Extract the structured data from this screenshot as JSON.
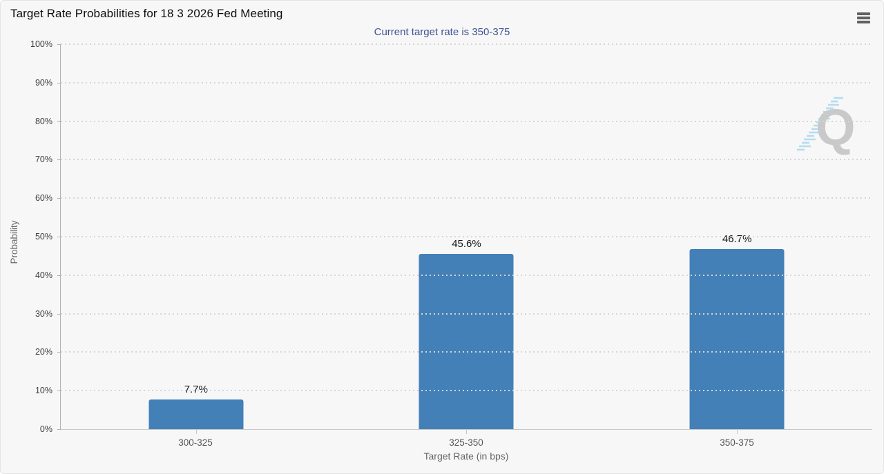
{
  "header": {
    "title": "Target Rate Probabilities for 18 3 2026 Fed Meeting",
    "icons": {
      "menu": "hamburger-menu-icon"
    }
  },
  "watermark": {
    "letter": "Q"
  },
  "colors": {
    "background": "#f7f7f7",
    "bar": "#4380b7",
    "subtitle_text": "#3d5390",
    "grid": "#d6d6d6",
    "axis_line": "#b2b2b2",
    "axis_text": "#555555",
    "value_label_text": "#151515"
  },
  "chart_data": {
    "type": "bar",
    "title": "Target Rate Probabilities for 18 3 2026 Fed Meeting",
    "subtitle": "Current target rate is 350-375",
    "categories": [
      "300-325",
      "325-350",
      "350-375"
    ],
    "values": [
      7.7,
      45.6,
      46.7
    ],
    "value_labels": [
      "7.7%",
      "45.6%",
      "46.7%"
    ],
    "xlabel": "Target Rate (in bps)",
    "ylabel": "Probability",
    "ylim": [
      0,
      100
    ],
    "yticks": [
      0,
      10,
      20,
      30,
      40,
      50,
      60,
      70,
      80,
      90,
      100
    ],
    "ytick_labels": [
      "0%",
      "10%",
      "20%",
      "30%",
      "40%",
      "50%",
      "60%",
      "70%",
      "80%",
      "90%",
      "100%"
    ],
    "grid": "dotted-horizontal",
    "legend": "none",
    "bar_color": "#4380b7"
  }
}
